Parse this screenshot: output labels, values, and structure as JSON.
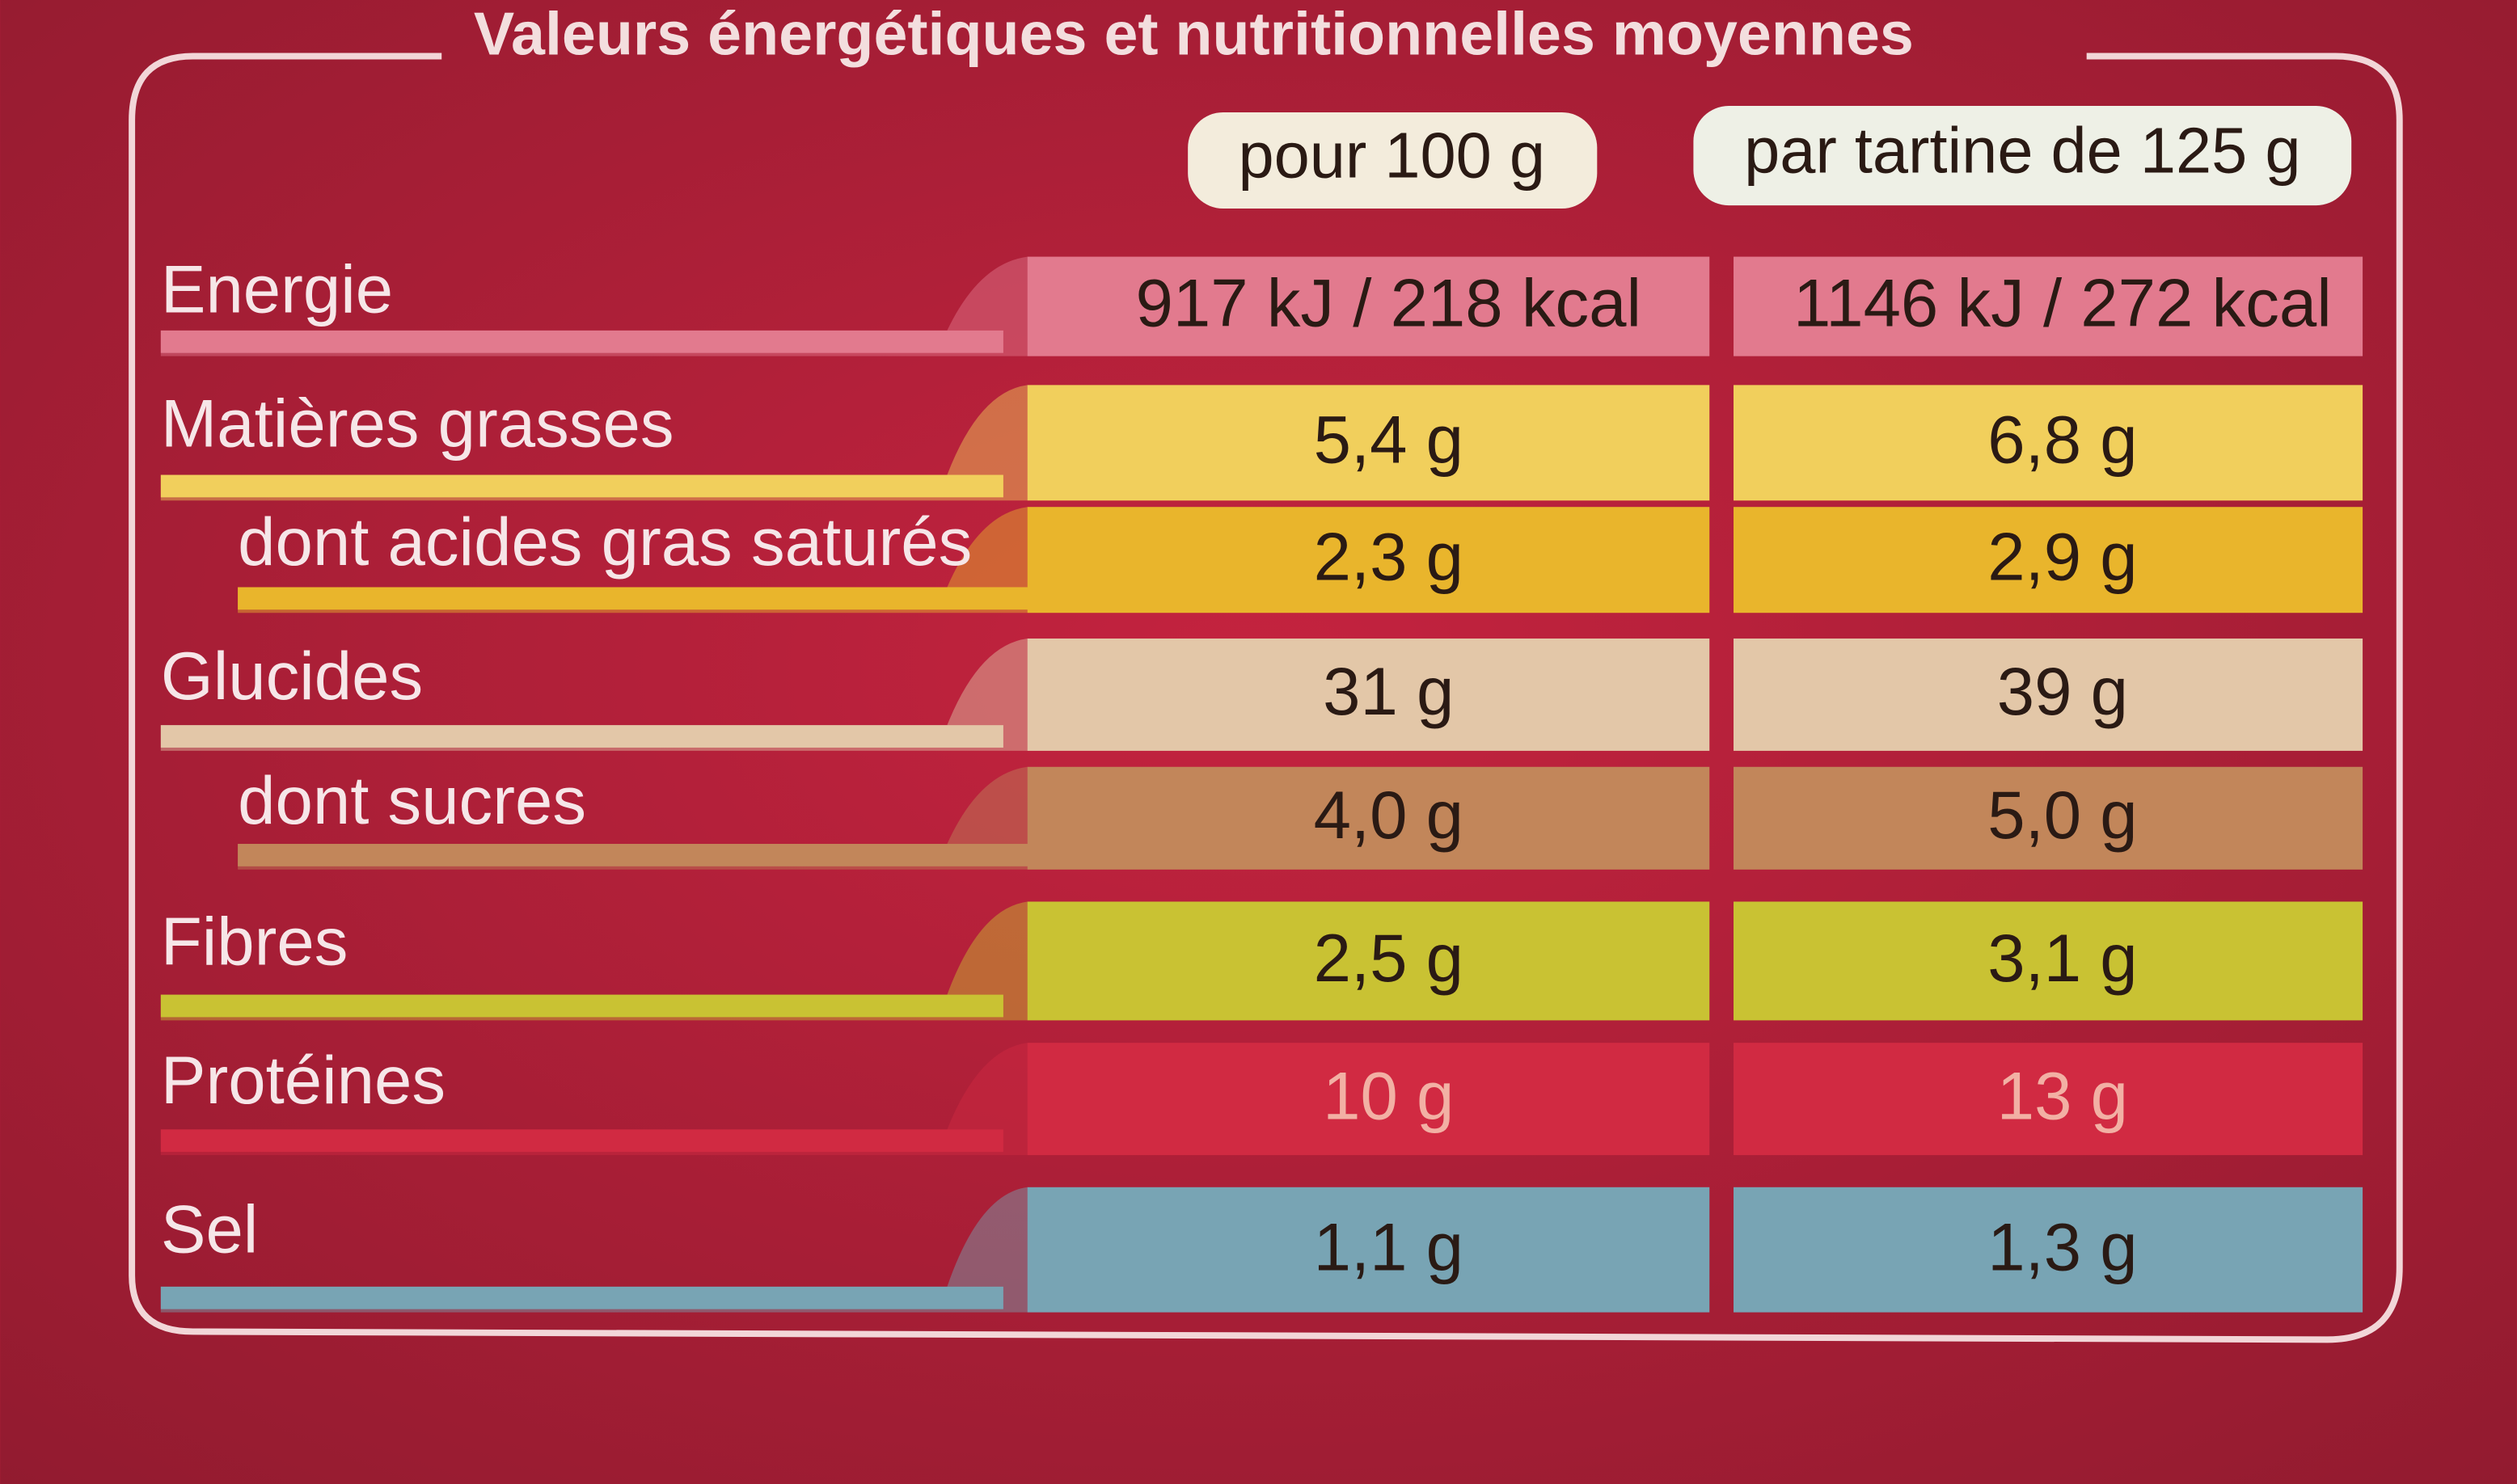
{
  "title": "Valeurs énergétiques et nutritionnelles moyennes",
  "columns": [
    "pour 100 g",
    "par tartine de 125 g"
  ],
  "rows": [
    {
      "label": "Energie",
      "per_100g": "917 kJ / 218 kcal",
      "per_serving": "1146 kJ / 272 kcal"
    },
    {
      "label": "Matières grasses",
      "per_100g": "5,4 g",
      "per_serving": "6,8 g"
    },
    {
      "label": "dont acides gras saturés",
      "per_100g": "2,3 g",
      "per_serving": "2,9 g"
    },
    {
      "label": "Glucides",
      "per_100g": "31 g",
      "per_serving": "39 g"
    },
    {
      "label": "dont sucres",
      "per_100g": "4,0 g",
      "per_serving": "5,0 g"
    },
    {
      "label": "Fibres",
      "per_100g": "2,5 g",
      "per_serving": "3,1 g"
    },
    {
      "label": "Protéines",
      "per_100g": "10 g",
      "per_serving": "13 g"
    },
    {
      "label": "Sel",
      "per_100g": "1,1 g",
      "per_serving": "1,3 g"
    }
  ]
}
